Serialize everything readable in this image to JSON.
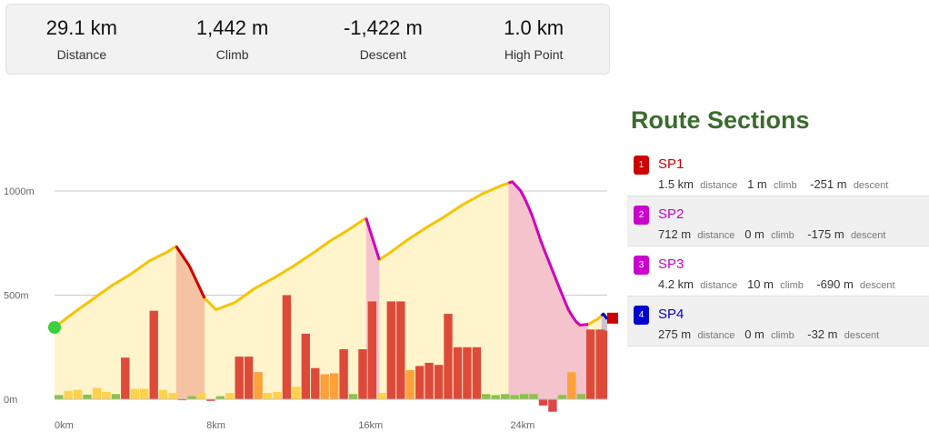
{
  "summary": [
    {
      "value": "29.1 km",
      "label": "Distance"
    },
    {
      "value": "1,442 m",
      "label": "Climb"
    },
    {
      "value": "-1,422 m",
      "label": "Descent"
    },
    {
      "value": "1.0 km",
      "label": "High Point"
    }
  ],
  "sections_panel": {
    "title": "Route Sections",
    "units": {
      "distance": "distance",
      "climb": "climb",
      "descent": "descent"
    },
    "items": [
      {
        "num": "1",
        "name": "SP1",
        "color": "#cc0000",
        "distance": "1.5 km",
        "climb": "1 m",
        "descent": "-251 m"
      },
      {
        "num": "2",
        "name": "SP2",
        "color": "#cc00cc",
        "distance": "712 m",
        "climb": "0 m",
        "descent": "-175 m"
      },
      {
        "num": "3",
        "name": "SP3",
        "color": "#cc00cc",
        "distance": "4.2 km",
        "climb": "10 m",
        "descent": "-690 m"
      },
      {
        "num": "4",
        "name": "SP4",
        "color": "#0000cc",
        "distance": "275 m",
        "climb": "0 m",
        "descent": "-32 m"
      }
    ]
  },
  "chart_data": {
    "type": "area",
    "title": "",
    "xlabel": "",
    "ylabel": "",
    "xlim": [
      0,
      29.1
    ],
    "ylim": [
      0,
      1000
    ],
    "x_ticks": [
      {
        "value": 0,
        "label": "0km"
      },
      {
        "value": 8,
        "label": "8km"
      },
      {
        "value": 16,
        "label": "16km"
      },
      {
        "value": 24,
        "label": "24km"
      }
    ],
    "y_ticks": [
      {
        "value": 0,
        "label": "0m"
      },
      {
        "value": 500,
        "label": "500m"
      },
      {
        "value": 1000,
        "label": "1000m"
      }
    ],
    "grid": true,
    "series": [
      {
        "x": [
          0,
          1,
          2,
          3,
          4,
          5,
          6,
          6.4,
          7.1,
          7.9,
          8.5,
          9.5,
          10.5,
          11.5,
          12.5,
          13.5,
          14.5,
          15.5,
          16.4,
          17.1,
          17.6,
          18.5,
          19.5,
          20.5,
          21.5,
          22.5,
          23.5,
          24.1,
          24.6,
          25.1,
          25.6,
          26.1,
          26.6,
          27.1,
          27.6,
          28.1,
          28.6,
          28.9,
          29.1
        ],
        "y": [
          345,
          415,
          480,
          545,
          600,
          665,
          710,
          735,
          640,
          485,
          430,
          465,
          530,
          580,
          635,
          695,
          760,
          815,
          870,
          670,
          700,
          760,
          820,
          875,
          935,
          985,
          1025,
          1045,
          995,
          895,
          760,
          645,
          530,
          420,
          355,
          360,
          385,
          410,
          385
        ]
      }
    ],
    "sections": [
      {
        "name": "SP1",
        "x_start": 6.4,
        "x_end": 7.9,
        "color": "#cc0000"
      },
      {
        "name": "SP2",
        "x_start": 16.4,
        "x_end": 17.1,
        "color": "#cc00cc"
      },
      {
        "name": "SP3",
        "x_start": 23.9,
        "x_end": 28.1,
        "color": "#cc00cc"
      },
      {
        "name": "SP4",
        "x_start": 28.8,
        "x_end": 29.1,
        "color": "#0000cc"
      }
    ],
    "gradient_bars": [
      {
        "x": 0.0,
        "w": 0.45,
        "v": 20
      },
      {
        "x": 0.5,
        "w": 0.45,
        "v": 40
      },
      {
        "x": 1.0,
        "w": 0.45,
        "v": 45
      },
      {
        "x": 1.5,
        "w": 0.45,
        "v": 22
      },
      {
        "x": 2.0,
        "w": 0.45,
        "v": 55
      },
      {
        "x": 2.5,
        "w": 0.45,
        "v": 35
      },
      {
        "x": 3.0,
        "w": 0.45,
        "v": 25
      },
      {
        "x": 3.5,
        "w": 0.45,
        "v": 200
      },
      {
        "x": 4.0,
        "w": 0.45,
        "v": 50
      },
      {
        "x": 4.5,
        "w": 0.45,
        "v": 50
      },
      {
        "x": 5.0,
        "w": 0.45,
        "v": 425
      },
      {
        "x": 5.5,
        "w": 0.45,
        "v": 45
      },
      {
        "x": 6.0,
        "w": 0.45,
        "v": 30
      },
      {
        "x": 6.5,
        "w": 0.45,
        "v": -5
      },
      {
        "x": 7.0,
        "w": 0.45,
        "v": 15
      },
      {
        "x": 7.5,
        "w": 0.45,
        "v": 30
      },
      {
        "x": 8.0,
        "w": 0.45,
        "v": -8
      },
      {
        "x": 8.5,
        "w": 0.45,
        "v": 15
      },
      {
        "x": 9.0,
        "w": 0.45,
        "v": 30
      },
      {
        "x": 9.5,
        "w": 0.45,
        "v": 205
      },
      {
        "x": 10.0,
        "w": 0.45,
        "v": 205
      },
      {
        "x": 10.5,
        "w": 0.45,
        "v": 130
      },
      {
        "x": 11.0,
        "w": 0.45,
        "v": 30
      },
      {
        "x": 11.5,
        "w": 0.45,
        "v": 35
      },
      {
        "x": 12.0,
        "w": 0.45,
        "v": 500
      },
      {
        "x": 12.5,
        "w": 0.45,
        "v": 60
      },
      {
        "x": 13.0,
        "w": 0.45,
        "v": 315
      },
      {
        "x": 13.5,
        "w": 0.45,
        "v": 150
      },
      {
        "x": 14.0,
        "w": 0.45,
        "v": 120
      },
      {
        "x": 14.5,
        "w": 0.45,
        "v": 125
      },
      {
        "x": 15.0,
        "w": 0.45,
        "v": 240
      },
      {
        "x": 15.5,
        "w": 0.45,
        "v": 25
      },
      {
        "x": 16.0,
        "w": 0.45,
        "v": 240
      },
      {
        "x": 16.5,
        "w": 0.45,
        "v": 470
      },
      {
        "x": 17.0,
        "w": 0.45,
        "v": 30
      },
      {
        "x": 17.5,
        "w": 0.45,
        "v": 470
      },
      {
        "x": 18.0,
        "w": 0.45,
        "v": 470
      },
      {
        "x": 18.5,
        "w": 0.45,
        "v": 140
      },
      {
        "x": 19.0,
        "w": 0.45,
        "v": 160
      },
      {
        "x": 19.5,
        "w": 0.45,
        "v": 175
      },
      {
        "x": 20.0,
        "w": 0.45,
        "v": 165
      },
      {
        "x": 20.5,
        "w": 0.45,
        "v": 410
      },
      {
        "x": 21.0,
        "w": 0.45,
        "v": 250
      },
      {
        "x": 21.5,
        "w": 0.45,
        "v": 250
      },
      {
        "x": 22.0,
        "w": 0.45,
        "v": 250
      },
      {
        "x": 22.5,
        "w": 0.45,
        "v": 25
      },
      {
        "x": 23.0,
        "w": 0.45,
        "v": 20
      },
      {
        "x": 23.5,
        "w": 0.45,
        "v": 25
      },
      {
        "x": 24.0,
        "w": 0.45,
        "v": 20
      },
      {
        "x": 24.5,
        "w": 0.45,
        "v": 25
      },
      {
        "x": 25.0,
        "w": 0.45,
        "v": 25
      },
      {
        "x": 25.5,
        "w": 0.45,
        "v": -30
      },
      {
        "x": 26.0,
        "w": 0.45,
        "v": -60
      },
      {
        "x": 26.5,
        "w": 0.45,
        "v": 20
      },
      {
        "x": 27.0,
        "w": 0.45,
        "v": 130
      },
      {
        "x": 27.5,
        "w": 0.45,
        "v": 25
      },
      {
        "x": 28.0,
        "w": 0.45,
        "v": 335
      },
      {
        "x": 28.5,
        "w": 0.45,
        "v": 335
      },
      {
        "x": 28.8,
        "w": 0.3,
        "v": 330
      }
    ],
    "start_marker_color": "#3cd03c",
    "end_marker_color": "#cc0000",
    "colors": {
      "line": "#f5c400",
      "fill": "#fff4cc",
      "grid": "#c8c8c8"
    }
  }
}
